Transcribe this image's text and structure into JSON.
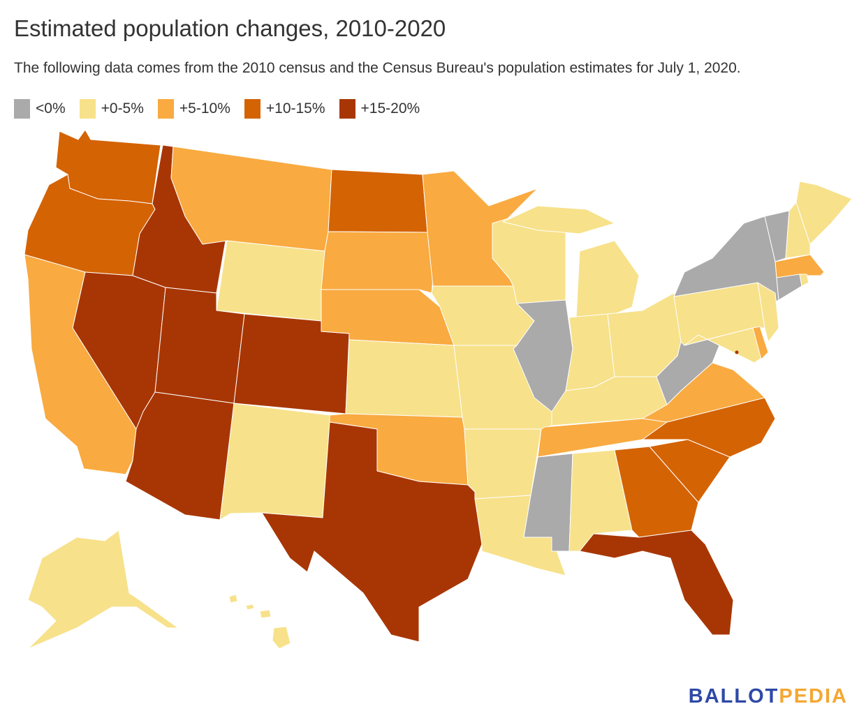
{
  "title": "Estimated population changes, 2010-2020",
  "subtitle": "The following data comes from the 2010 census and the Census Bureau's population estimates for July 1, 2020.",
  "legend": [
    {
      "label": "<0%",
      "color": "#aaaaaa"
    },
    {
      "label": "+0-5%",
      "color": "#f7e18a"
    },
    {
      "label": "+5-10%",
      "color": "#f9aa40"
    },
    {
      "label": "+10-15%",
      "color": "#d46304"
    },
    {
      "label": "+15-20%",
      "color": "#a83604"
    }
  ],
  "map_data": {
    "WA": 3,
    "OR": 3,
    "CA": 2,
    "NV": 4,
    "ID": 4,
    "MT": 2,
    "WY": 1,
    "UT": 4,
    "AZ": 4,
    "CO": 4,
    "NM": 1,
    "ND": 3,
    "SD": 2,
    "NE": 2,
    "KS": 1,
    "OK": 2,
    "TX": 4,
    "MN": 2,
    "IA": 1,
    "MO": 1,
    "AR": 1,
    "LA": 1,
    "WI": 1,
    "IL": 0,
    "MI": 1,
    "IN": 1,
    "OH": 1,
    "KY": 1,
    "TN": 2,
    "MS": 0,
    "AL": 1,
    "GA": 3,
    "FL": 4,
    "SC": 3,
    "NC": 3,
    "VA": 2,
    "WV": 0,
    "PA": 1,
    "NY": 0,
    "VT": 0,
    "NH": 1,
    "ME": 1,
    "MA": 2,
    "RI": 1,
    "CT": 0,
    "NJ": 1,
    "MD": 1,
    "DE": 2,
    "DC": 4,
    "AK": 1,
    "HI": 1
  },
  "logo": {
    "part1": "BALLOT",
    "part2": "PEDIA"
  }
}
